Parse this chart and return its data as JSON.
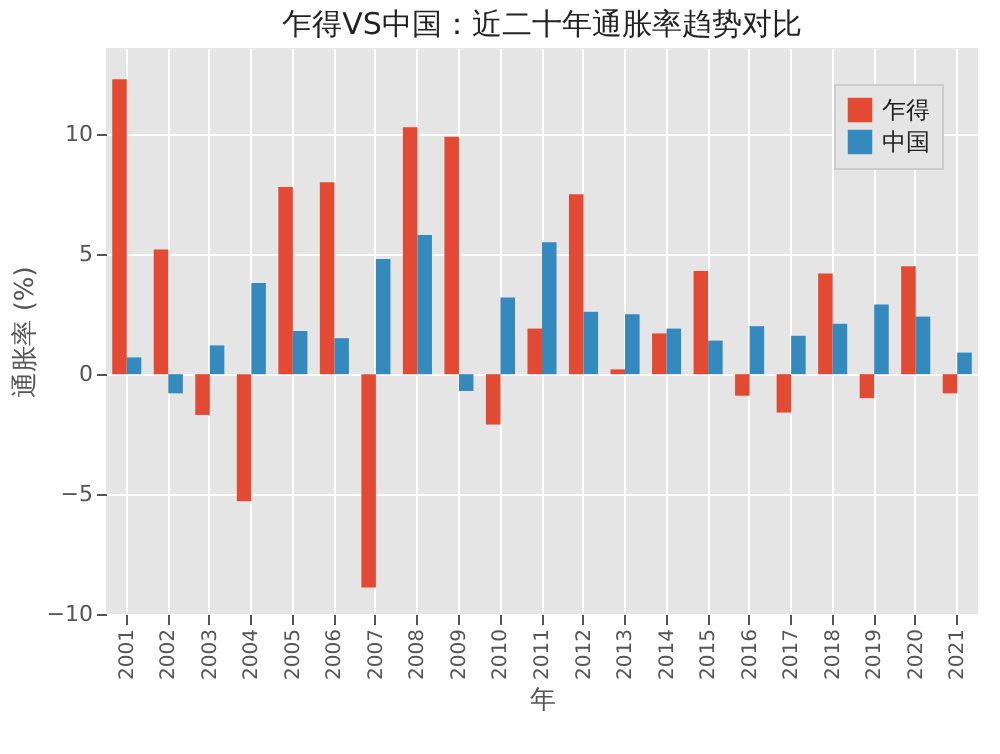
{
  "chart_data": {
    "type": "bar",
    "title": "乍得VS中国：近二十年通胀率趋势对比",
    "xlabel": "年",
    "ylabel": "通胀率 (%)",
    "categories": [
      "2001",
      "2002",
      "2003",
      "2004",
      "2005",
      "2006",
      "2007",
      "2008",
      "2009",
      "2010",
      "2011",
      "2012",
      "2013",
      "2014",
      "2015",
      "2016",
      "2017",
      "2018",
      "2019",
      "2020",
      "2021"
    ],
    "series": [
      {
        "name": "乍得",
        "color": "#e24a33",
        "values": [
          12.3,
          5.2,
          -1.7,
          -5.3,
          7.8,
          8.0,
          -8.9,
          10.3,
          9.9,
          -2.1,
          1.9,
          7.5,
          0.2,
          1.7,
          4.3,
          -0.9,
          -1.6,
          4.2,
          -1.0,
          4.5,
          -0.8
        ]
      },
      {
        "name": "中国",
        "color": "#348abd",
        "values": [
          0.7,
          -0.8,
          1.2,
          3.8,
          1.8,
          1.5,
          4.8,
          5.8,
          -0.7,
          3.2,
          5.5,
          2.6,
          2.5,
          1.9,
          1.4,
          2.0,
          1.6,
          2.1,
          2.9,
          2.4,
          0.9
        ]
      }
    ],
    "ylim": [
      -10,
      13.6
    ],
    "yticks": [
      -10,
      -5,
      0,
      5,
      10
    ],
    "grid": true,
    "legend": "top right"
  }
}
